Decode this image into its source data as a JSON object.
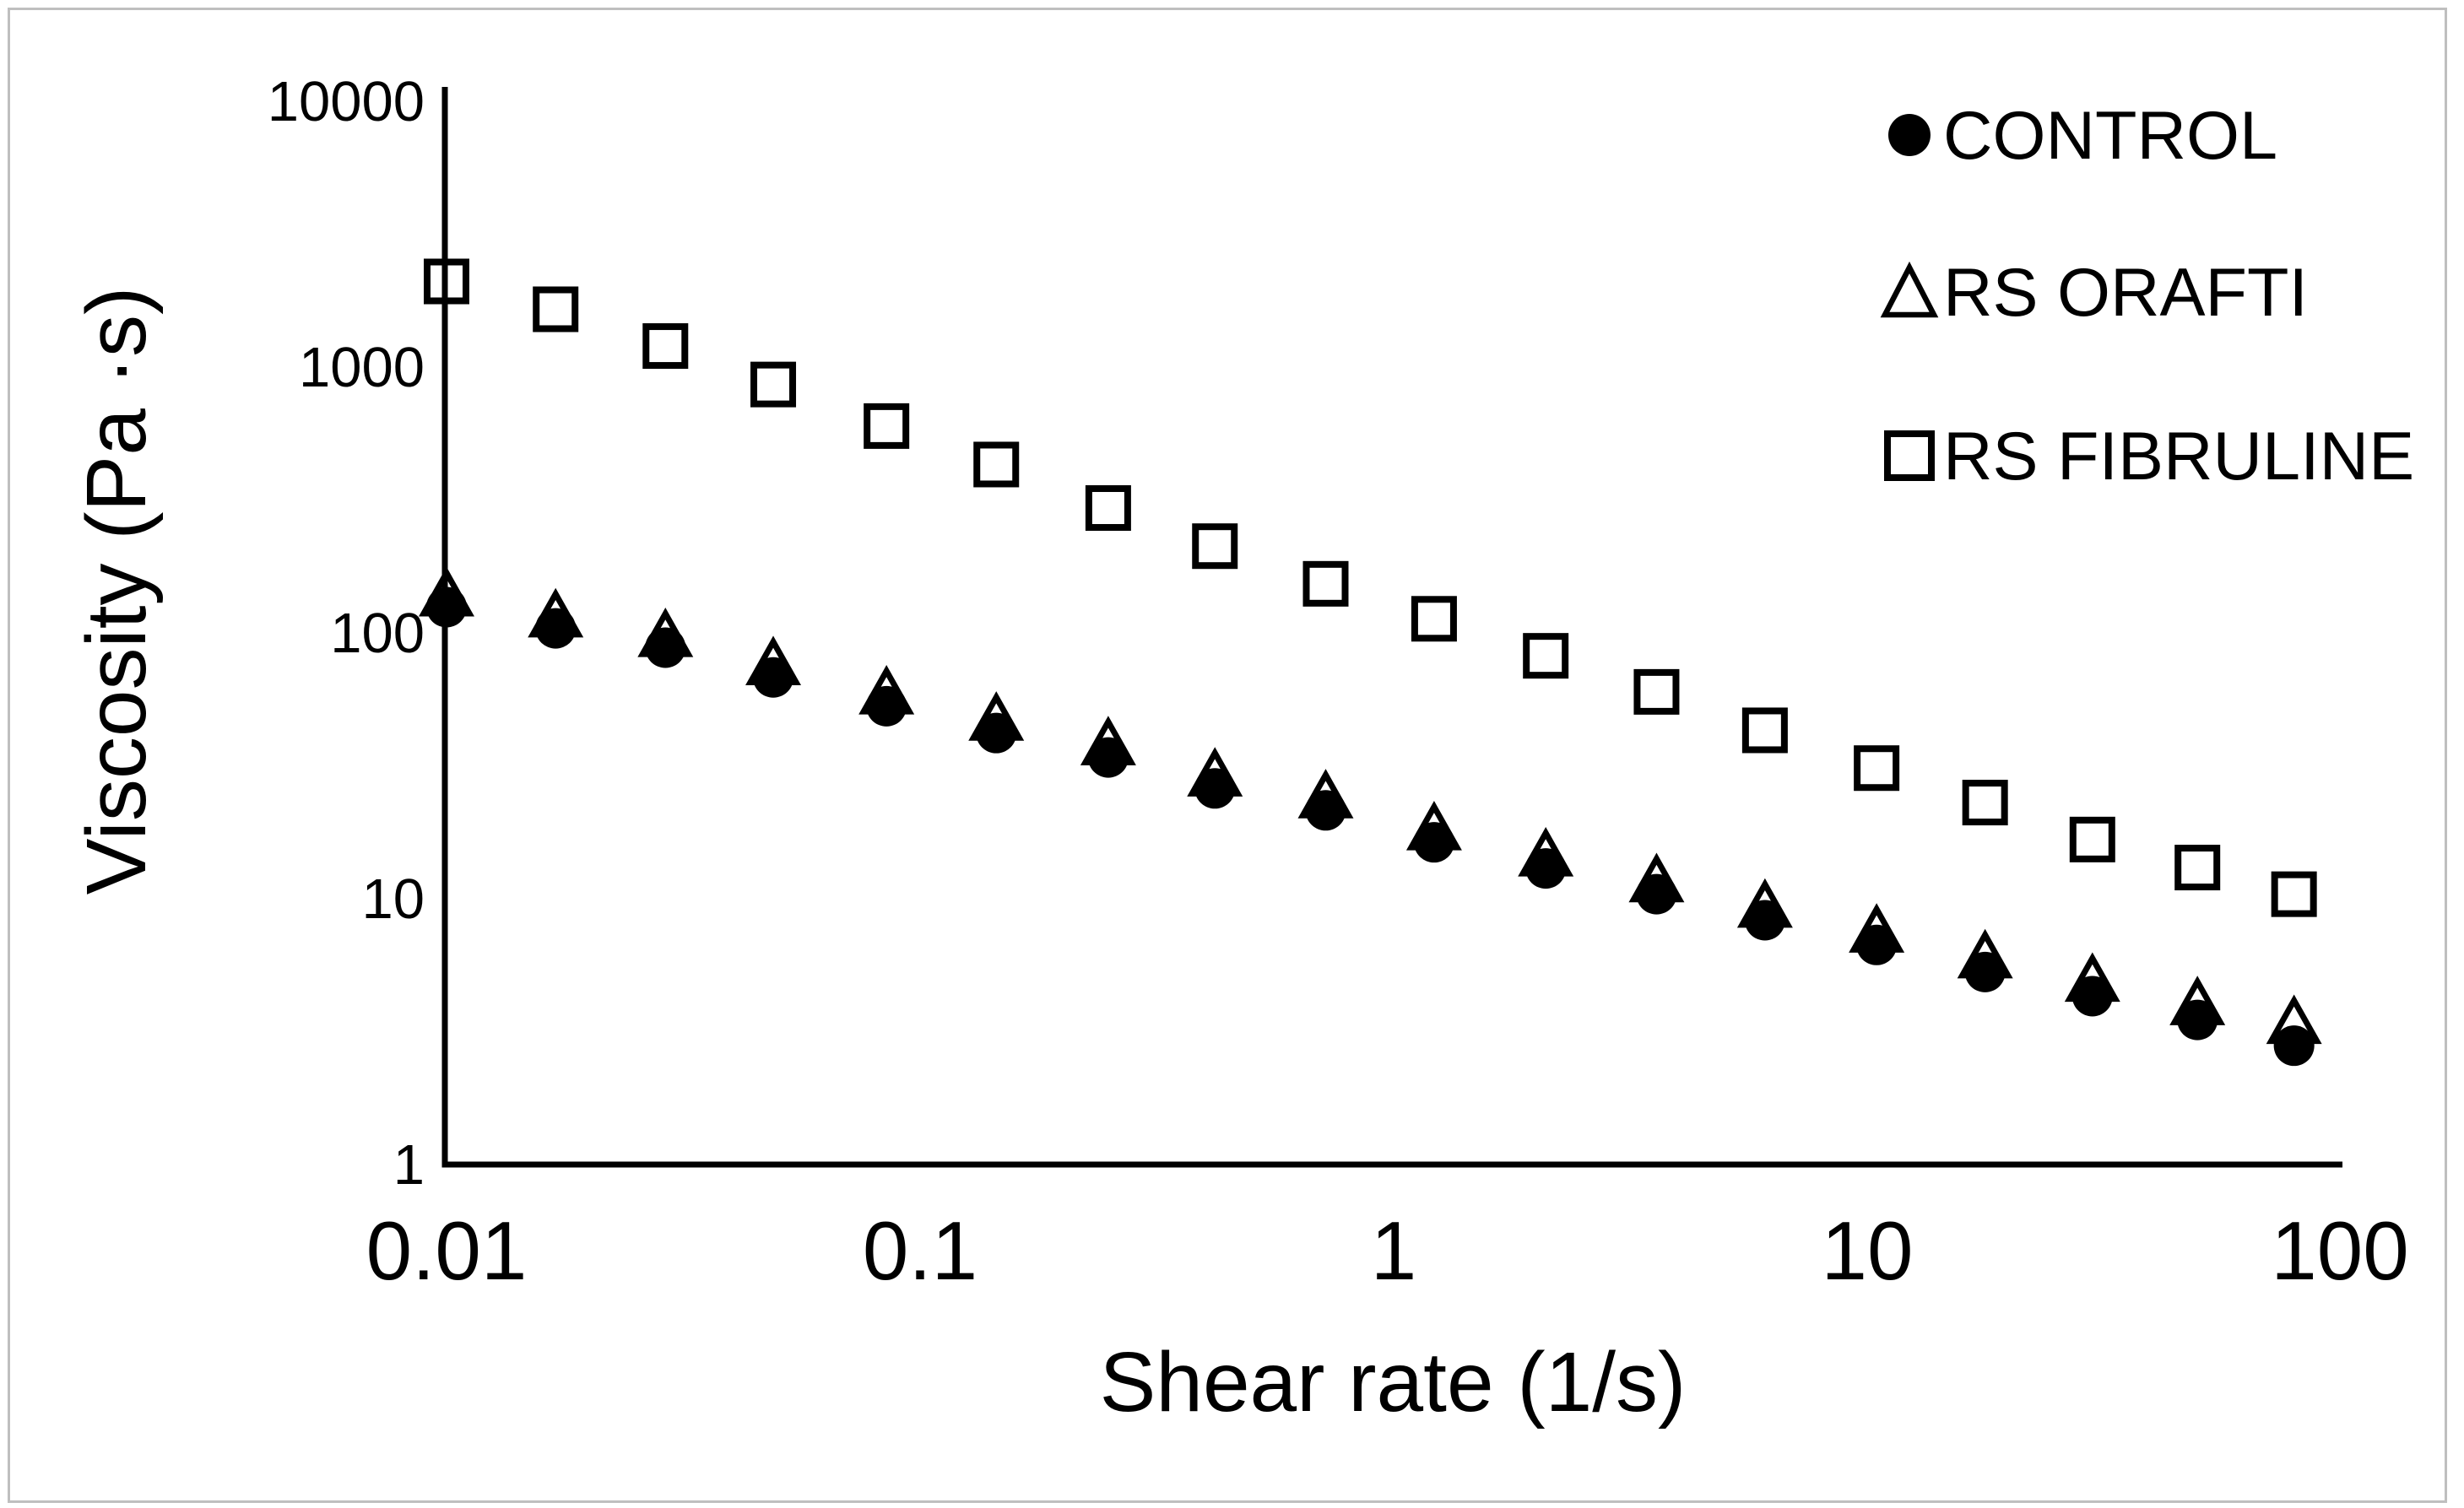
{
  "figure": {
    "background": "#ffffff",
    "border_color": "#bfbfbf",
    "ink_color": "#000000"
  },
  "chart_data": {
    "type": "scatter",
    "title": "",
    "xlabel": "Shear rate (1/s)",
    "ylabel": "Viscosity (Pa ·s)",
    "x_scale": "log",
    "y_scale": "log",
    "xlim": [
      0.01,
      100
    ],
    "ylim": [
      1,
      10000
    ],
    "grid": false,
    "legend_position": "top-right",
    "x_tick_labels": [
      "0.01",
      "0.1",
      "1",
      "10",
      "100"
    ],
    "y_tick_labels": [
      "10000",
      "1000",
      "100",
      "10",
      "1"
    ],
    "x": [
      0.01,
      0.017,
      0.029,
      0.049,
      0.085,
      0.145,
      0.25,
      0.42,
      0.72,
      1.22,
      2.1,
      3.6,
      6.1,
      10.5,
      17.8,
      30,
      50,
      80
    ],
    "series": [
      {
        "name": "CONTROL",
        "marker": "filled-circle",
        "color": "#000000",
        "values": [
          125,
          104,
          88,
          68,
          53,
          42,
          34,
          26,
          21.5,
          16.3,
          13,
          10.4,
          8.3,
          6.7,
          5.3,
          4.3,
          3.5,
          2.8
        ]
      },
      {
        "name": "RS ORAFTI",
        "marker": "open-triangle",
        "color": "#000000",
        "values": [
          138,
          115,
          97,
          76,
          59,
          47,
          38,
          29,
          24,
          18.2,
          14.5,
          11.6,
          9.3,
          7.5,
          6.0,
          4.9,
          4.0,
          3.4
        ]
      },
      {
        "name": "RS FIBRULINE",
        "marker": "open-square",
        "color": "#000000",
        "values": [
          2100,
          1650,
          1200,
          860,
          600,
          430,
          295,
          212,
          153,
          113,
          82,
          60,
          43,
          31,
          23,
          16.7,
          13.1,
          10.4
        ]
      }
    ]
  }
}
